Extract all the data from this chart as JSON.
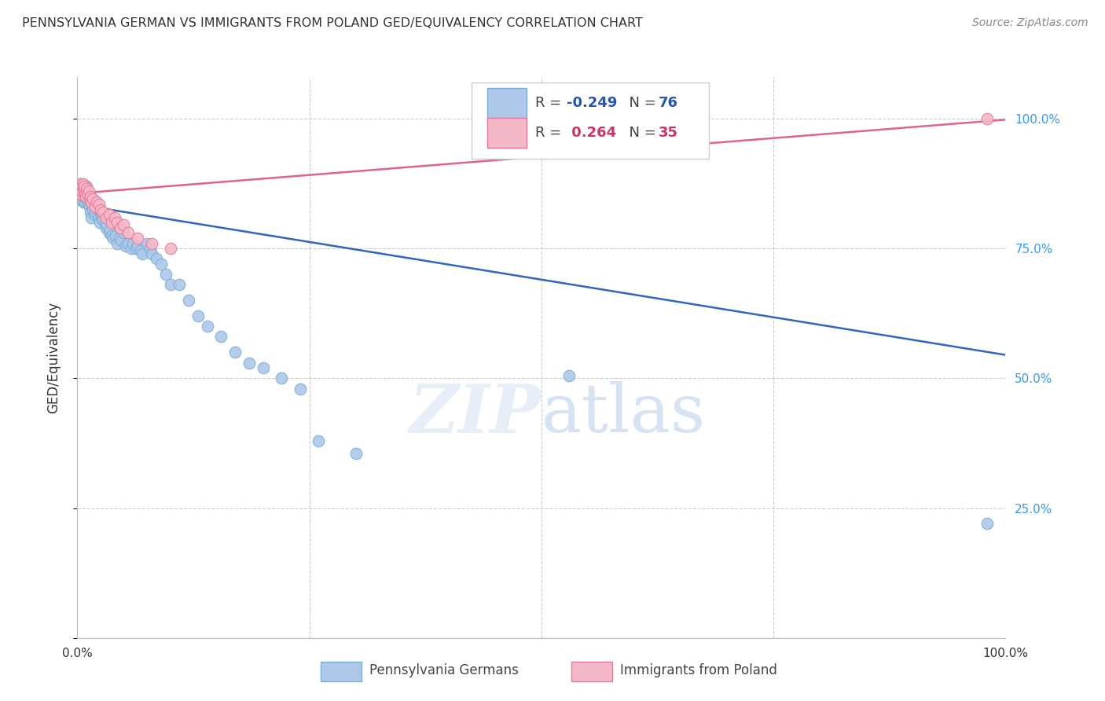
{
  "title": "PENNSYLVANIA GERMAN VS IMMIGRANTS FROM POLAND GED/EQUIVALENCY CORRELATION CHART",
  "source": "Source: ZipAtlas.com",
  "ylabel": "GED/Equivalency",
  "watermark": "ZIPatlas",
  "blue_R": -0.249,
  "blue_N": 76,
  "pink_R": 0.264,
  "pink_N": 35,
  "blue_color": "#adc8e8",
  "blue_edge": "#7aafd4",
  "pink_color": "#f5b8c8",
  "pink_edge": "#e87898",
  "blue_line_color": "#3366bb",
  "pink_line_color": "#dd6688",
  "legend_blue_color": "#adc8e8",
  "legend_pink_color": "#f5b8c8",
  "right_axis_color": "#3399ff",
  "grid_color": "#cccccc",
  "blue_line_x0": 0.0,
  "blue_line_x1": 1.0,
  "blue_line_y0": 0.835,
  "blue_line_y1": 0.545,
  "pink_line_x0": 0.0,
  "pink_line_x1": 1.0,
  "pink_line_y0": 0.856,
  "pink_line_y1": 0.998,
  "blue_x": [
    0.003,
    0.004,
    0.005,
    0.005,
    0.006,
    0.006,
    0.007,
    0.007,
    0.008,
    0.008,
    0.009,
    0.009,
    0.01,
    0.01,
    0.011,
    0.011,
    0.012,
    0.012,
    0.013,
    0.014,
    0.015,
    0.015,
    0.016,
    0.017,
    0.018,
    0.019,
    0.02,
    0.021,
    0.022,
    0.023,
    0.024,
    0.025,
    0.026,
    0.027,
    0.028,
    0.03,
    0.031,
    0.032,
    0.034,
    0.035,
    0.037,
    0.039,
    0.041,
    0.043,
    0.045,
    0.047,
    0.05,
    0.052,
    0.055,
    0.058,
    0.06,
    0.063,
    0.065,
    0.068,
    0.07,
    0.075,
    0.078,
    0.08,
    0.085,
    0.09,
    0.095,
    0.1,
    0.11,
    0.12,
    0.13,
    0.14,
    0.155,
    0.17,
    0.185,
    0.2,
    0.22,
    0.24,
    0.26,
    0.3,
    0.53,
    0.98
  ],
  "blue_y": [
    0.87,
    0.855,
    0.875,
    0.86,
    0.84,
    0.865,
    0.855,
    0.87,
    0.85,
    0.84,
    0.845,
    0.86,
    0.87,
    0.85,
    0.855,
    0.84,
    0.835,
    0.845,
    0.83,
    0.82,
    0.84,
    0.81,
    0.835,
    0.825,
    0.815,
    0.82,
    0.84,
    0.83,
    0.825,
    0.81,
    0.8,
    0.82,
    0.815,
    0.808,
    0.805,
    0.8,
    0.79,
    0.795,
    0.78,
    0.785,
    0.775,
    0.77,
    0.775,
    0.76,
    0.77,
    0.765,
    0.78,
    0.755,
    0.76,
    0.75,
    0.76,
    0.75,
    0.755,
    0.745,
    0.74,
    0.76,
    0.75,
    0.74,
    0.73,
    0.72,
    0.7,
    0.68,
    0.68,
    0.65,
    0.62,
    0.6,
    0.58,
    0.55,
    0.53,
    0.52,
    0.5,
    0.48,
    0.38,
    0.355,
    0.505,
    0.22
  ],
  "pink_x": [
    0.003,
    0.004,
    0.004,
    0.005,
    0.005,
    0.006,
    0.006,
    0.007,
    0.007,
    0.008,
    0.009,
    0.01,
    0.011,
    0.012,
    0.013,
    0.014,
    0.015,
    0.017,
    0.019,
    0.021,
    0.023,
    0.025,
    0.028,
    0.031,
    0.034,
    0.037,
    0.04,
    0.043,
    0.046,
    0.05,
    0.055,
    0.065,
    0.08,
    0.1,
    0.98
  ],
  "pink_y": [
    0.875,
    0.865,
    0.855,
    0.87,
    0.86,
    0.875,
    0.865,
    0.86,
    0.87,
    0.855,
    0.85,
    0.865,
    0.855,
    0.86,
    0.845,
    0.85,
    0.84,
    0.845,
    0.83,
    0.84,
    0.835,
    0.825,
    0.82,
    0.81,
    0.815,
    0.8,
    0.81,
    0.8,
    0.79,
    0.795,
    0.78,
    0.77,
    0.76,
    0.75,
    1.0
  ],
  "xlim": [
    0.0,
    1.0
  ],
  "ylim": [
    0.0,
    1.08
  ]
}
